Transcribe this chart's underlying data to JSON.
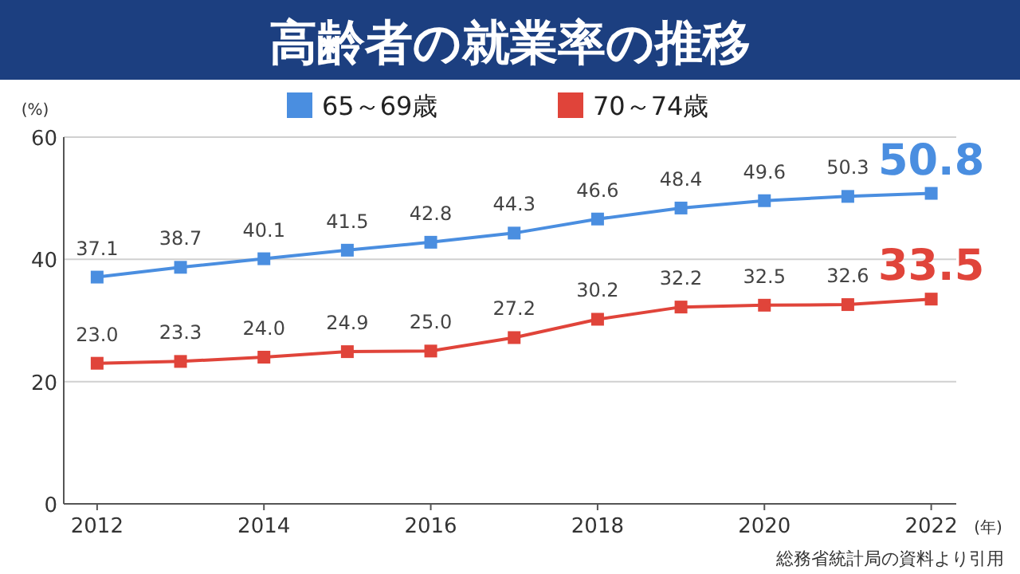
{
  "chart_data": {
    "type": "line",
    "title": "高齢者の就業率の推移",
    "ylabel": "(%)",
    "xlabel": "(年)",
    "x": [
      2012,
      2013,
      2014,
      2015,
      2016,
      2017,
      2018,
      2019,
      2020,
      2021,
      2022
    ],
    "series": [
      {
        "name": "65～69歳",
        "color": "#4a8ee0",
        "values": [
          37.1,
          38.7,
          40.1,
          41.5,
          42.8,
          44.3,
          46.6,
          48.4,
          49.6,
          50.3,
          50.8
        ],
        "value_labels": [
          "37.1",
          "38.7",
          "40.1",
          "41.5",
          "42.8",
          "44.3",
          "46.6",
          "48.4",
          "49.6",
          "50.3",
          "50.8"
        ]
      },
      {
        "name": "70～74歳",
        "color": "#e0443a",
        "values": [
          23.0,
          23.3,
          24.0,
          24.9,
          25.0,
          27.2,
          30.2,
          32.2,
          32.5,
          32.6,
          33.5
        ],
        "value_labels": [
          "23.0",
          "23.3",
          "24.0",
          "24.9",
          "25.0",
          "27.2",
          "30.2",
          "32.2",
          "32.5",
          "32.6",
          "33.5"
        ]
      }
    ],
    "xlim": [
      2011.6,
      2022.3
    ],
    "xticks": [
      2012,
      2014,
      2016,
      2018,
      2020,
      2022
    ],
    "ylim": [
      0,
      60
    ],
    "yticks": [
      0,
      20,
      40,
      60
    ],
    "grid": "y",
    "legend": "top",
    "marker": "square",
    "annotations": [
      "総務省統計局の資料より引用"
    ]
  }
}
